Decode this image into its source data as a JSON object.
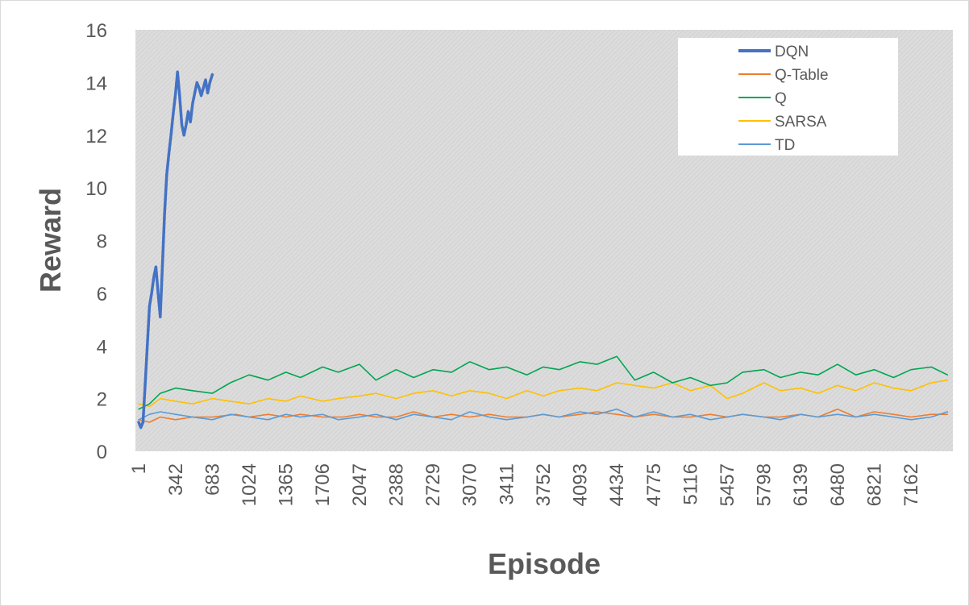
{
  "chart_data": {
    "type": "line",
    "title": "",
    "xlabel": "Episode",
    "ylabel": "Reward",
    "ylim": [
      0,
      16
    ],
    "yticks": [
      "0",
      "2",
      "4",
      "6",
      "8",
      "10",
      "12",
      "14",
      "16"
    ],
    "xlim": [
      1,
      7500
    ],
    "xticks": [
      "1",
      "342",
      "683",
      "1024",
      "1365",
      "1706",
      "2047",
      "2388",
      "2729",
      "3070",
      "3411",
      "3752",
      "4093",
      "4434",
      "4775",
      "5116",
      "5457",
      "5798",
      "6139",
      "6480",
      "6821",
      "7162"
    ],
    "grid": false,
    "plot_background": "#d9d9d9 hatched",
    "legend_position": "top-right",
    "series": [
      {
        "name": "DQN",
        "color": "#4472c4",
        "line_width": "thick",
        "x": [
          1,
          20,
          40,
          60,
          80,
          100,
          120,
          140,
          160,
          180,
          200,
          220,
          240,
          260,
          280,
          300,
          320,
          342,
          360,
          380,
          400,
          420,
          440,
          460,
          480,
          500,
          520,
          540,
          560,
          580,
          600,
          620,
          640,
          660,
          683
        ],
        "y": [
          1.1,
          0.9,
          1.1,
          2.5,
          4.0,
          5.5,
          6.0,
          6.6,
          7.0,
          6.0,
          5.1,
          7.0,
          9.0,
          10.5,
          11.3,
          12.0,
          12.8,
          13.6,
          14.4,
          13.5,
          12.4,
          12.0,
          12.4,
          12.9,
          12.5,
          13.2,
          13.6,
          14.0,
          13.8,
          13.5,
          13.8,
          14.1,
          13.6,
          14.0,
          14.3
        ]
      },
      {
        "name": "Q-Table",
        "color": "#ed7d31",
        "line_width": "thin",
        "x": [
          1,
          100,
          200,
          342,
          500,
          683,
          900,
          1024,
          1200,
          1365,
          1500,
          1706,
          1900,
          2047,
          2200,
          2388,
          2550,
          2729,
          2900,
          3070,
          3250,
          3411,
          3600,
          3752,
          3900,
          4093,
          4250,
          4434,
          4600,
          4775,
          4950,
          5116,
          5300,
          5457,
          5600,
          5798,
          5950,
          6139,
          6300,
          6480,
          6650,
          6821,
          7000,
          7162,
          7350,
          7500
        ],
        "y": [
          1.2,
          1.1,
          1.3,
          1.2,
          1.3,
          1.3,
          1.4,
          1.3,
          1.4,
          1.3,
          1.4,
          1.3,
          1.3,
          1.4,
          1.3,
          1.3,
          1.5,
          1.3,
          1.4,
          1.3,
          1.4,
          1.3,
          1.3,
          1.4,
          1.3,
          1.4,
          1.5,
          1.4,
          1.3,
          1.4,
          1.3,
          1.3,
          1.4,
          1.3,
          1.4,
          1.3,
          1.3,
          1.4,
          1.3,
          1.6,
          1.3,
          1.5,
          1.4,
          1.3,
          1.4,
          1.4
        ]
      },
      {
        "name": "Q",
        "color": "#00a651",
        "line_width": "thin",
        "x": [
          1,
          100,
          200,
          342,
          500,
          683,
          850,
          1024,
          1200,
          1365,
          1500,
          1706,
          1850,
          2047,
          2200,
          2388,
          2550,
          2729,
          2900,
          3070,
          3250,
          3411,
          3600,
          3752,
          3900,
          4093,
          4250,
          4434,
          4600,
          4775,
          4950,
          5116,
          5300,
          5457,
          5600,
          5798,
          5950,
          6139,
          6300,
          6480,
          6650,
          6821,
          7000,
          7162,
          7350,
          7500
        ],
        "y": [
          1.6,
          1.8,
          2.2,
          2.4,
          2.3,
          2.2,
          2.6,
          2.9,
          2.7,
          3.0,
          2.8,
          3.2,
          3.0,
          3.3,
          2.7,
          3.1,
          2.8,
          3.1,
          3.0,
          3.4,
          3.1,
          3.2,
          2.9,
          3.2,
          3.1,
          3.4,
          3.3,
          3.6,
          2.7,
          3.0,
          2.6,
          2.8,
          2.5,
          2.6,
          3.0,
          3.1,
          2.8,
          3.0,
          2.9,
          3.3,
          2.9,
          3.1,
          2.8,
          3.1,
          3.2,
          2.9
        ]
      },
      {
        "name": "SARSA",
        "color": "#ffc000",
        "line_width": "thin",
        "x": [
          1,
          100,
          200,
          342,
          500,
          683,
          850,
          1024,
          1200,
          1365,
          1500,
          1706,
          1850,
          2047,
          2200,
          2388,
          2550,
          2729,
          2900,
          3070,
          3250,
          3411,
          3600,
          3752,
          3900,
          4093,
          4250,
          4434,
          4600,
          4775,
          4950,
          5116,
          5300,
          5457,
          5600,
          5798,
          5950,
          6139,
          6300,
          6480,
          6650,
          6821,
          7000,
          7162,
          7350,
          7500
        ],
        "y": [
          1.8,
          1.7,
          2.0,
          1.9,
          1.8,
          2.0,
          1.9,
          1.8,
          2.0,
          1.9,
          2.1,
          1.9,
          2.0,
          2.1,
          2.2,
          2.0,
          2.2,
          2.3,
          2.1,
          2.3,
          2.2,
          2.0,
          2.3,
          2.1,
          2.3,
          2.4,
          2.3,
          2.6,
          2.5,
          2.4,
          2.6,
          2.3,
          2.5,
          2.0,
          2.2,
          2.6,
          2.3,
          2.4,
          2.2,
          2.5,
          2.3,
          2.6,
          2.4,
          2.3,
          2.6,
          2.7
        ]
      },
      {
        "name": "TD",
        "color": "#5b9bd5",
        "line_width": "thin",
        "x": [
          1,
          100,
          200,
          342,
          500,
          683,
          850,
          1024,
          1200,
          1365,
          1500,
          1706,
          1850,
          2047,
          2200,
          2388,
          2550,
          2729,
          2900,
          3070,
          3250,
          3411,
          3600,
          3752,
          3900,
          4093,
          4250,
          4434,
          4600,
          4775,
          4950,
          5116,
          5300,
          5457,
          5600,
          5798,
          5950,
          6139,
          6300,
          6480,
          6650,
          6821,
          7000,
          7162,
          7350,
          7500
        ],
        "y": [
          1.2,
          1.4,
          1.5,
          1.4,
          1.3,
          1.2,
          1.4,
          1.3,
          1.2,
          1.4,
          1.3,
          1.4,
          1.2,
          1.3,
          1.4,
          1.2,
          1.4,
          1.3,
          1.2,
          1.5,
          1.3,
          1.2,
          1.3,
          1.4,
          1.3,
          1.5,
          1.4,
          1.6,
          1.3,
          1.5,
          1.3,
          1.4,
          1.2,
          1.3,
          1.4,
          1.3,
          1.2,
          1.4,
          1.3,
          1.4,
          1.3,
          1.4,
          1.3,
          1.2,
          1.3,
          1.5
        ]
      }
    ]
  }
}
